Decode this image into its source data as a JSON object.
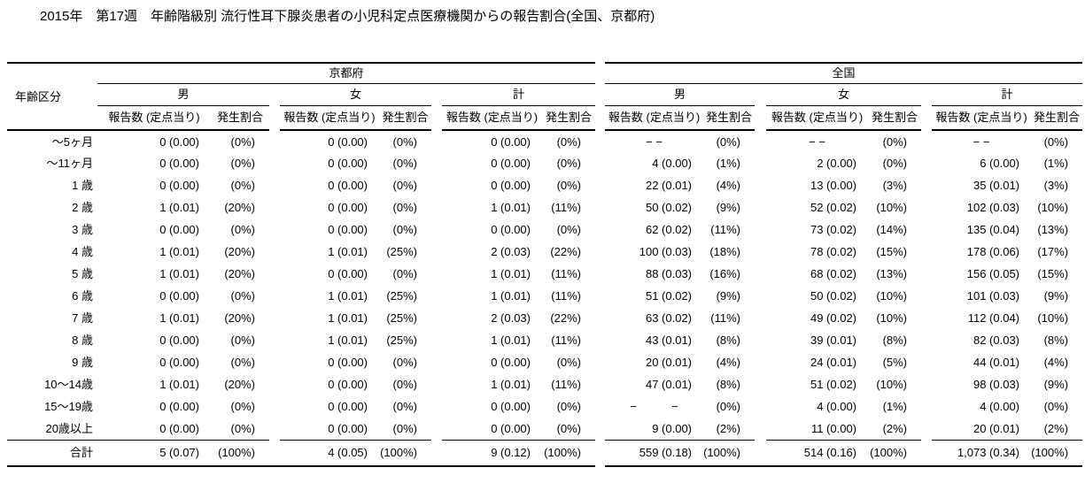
{
  "title": "2015年　第17週　年齢階級別 流行性耳下腺炎患者の小児科定点医療機関からの報告割合(全国、京都府)",
  "table": {
    "age_header": "年齢区分",
    "region_headers": [
      "京都府",
      "全国"
    ],
    "sex_headers": [
      "男",
      "女",
      "計"
    ],
    "col_headers": {
      "report": "報告数 (定点当り)",
      "rate": "発生割合"
    },
    "rows": [
      {
        "age": "〜5ヶ月",
        "cells": [
          "0 (0.00)",
          "(0%)",
          "0 (0.00)",
          "(0%)",
          "0 (0.00)",
          "(0%)",
          "− −",
          "(0%)",
          "− −",
          "(0%)",
          "− −",
          "(0%)"
        ]
      },
      {
        "age": "〜11ヶ月",
        "cells": [
          "0 (0.00)",
          "(0%)",
          "0 (0.00)",
          "(0%)",
          "0 (0.00)",
          "(0%)",
          "4 (0.00)",
          "(1%)",
          "2 (0.00)",
          "(0%)",
          "6 (0.00)",
          "(1%)"
        ]
      },
      {
        "age": "1 歳",
        "cells": [
          "0 (0.00)",
          "(0%)",
          "0 (0.00)",
          "(0%)",
          "0 (0.00)",
          "(0%)",
          "22 (0.01)",
          "(4%)",
          "13 (0.00)",
          "(3%)",
          "35 (0.01)",
          "(3%)"
        ]
      },
      {
        "age": "2 歳",
        "cells": [
          "1 (0.01)",
          "(20%)",
          "0 (0.00)",
          "(0%)",
          "1 (0.01)",
          "(11%)",
          "50 (0.02)",
          "(9%)",
          "52 (0.02)",
          "(10%)",
          "102 (0.03)",
          "(10%)"
        ]
      },
      {
        "age": "3 歳",
        "cells": [
          "0 (0.00)",
          "(0%)",
          "0 (0.00)",
          "(0%)",
          "0 (0.00)",
          "(0%)",
          "62 (0.02)",
          "(11%)",
          "73 (0.02)",
          "(14%)",
          "135 (0.04)",
          "(13%)"
        ]
      },
      {
        "age": "4 歳",
        "cells": [
          "1 (0.01)",
          "(20%)",
          "1 (0.01)",
          "(25%)",
          "2 (0.03)",
          "(22%)",
          "100 (0.03)",
          "(18%)",
          "78 (0.02)",
          "(15%)",
          "178 (0.06)",
          "(17%)"
        ]
      },
      {
        "age": "5 歳",
        "cells": [
          "1 (0.01)",
          "(20%)",
          "0 (0.00)",
          "(0%)",
          "1 (0.01)",
          "(11%)",
          "88 (0.03)",
          "(16%)",
          "68 (0.02)",
          "(13%)",
          "156 (0.05)",
          "(15%)"
        ]
      },
      {
        "age": "6 歳",
        "cells": [
          "0 (0.00)",
          "(0%)",
          "1 (0.01)",
          "(25%)",
          "1 (0.01)",
          "(11%)",
          "51 (0.02)",
          "(9%)",
          "50 (0.02)",
          "(10%)",
          "101 (0.03)",
          "(9%)"
        ]
      },
      {
        "age": "7 歳",
        "cells": [
          "1 (0.01)",
          "(20%)",
          "1 (0.01)",
          "(25%)",
          "2 (0.03)",
          "(22%)",
          "63 (0.02)",
          "(11%)",
          "49 (0.02)",
          "(10%)",
          "112 (0.04)",
          "(10%)"
        ]
      },
      {
        "age": "8 歳",
        "cells": [
          "0 (0.00)",
          "(0%)",
          "1 (0.01)",
          "(25%)",
          "1 (0.01)",
          "(11%)",
          "43 (0.01)",
          "(8%)",
          "39 (0.01)",
          "(8%)",
          "82 (0.03)",
          "(8%)"
        ]
      },
      {
        "age": "9 歳",
        "cells": [
          "0 (0.00)",
          "(0%)",
          "0 (0.00)",
          "(0%)",
          "0 (0.00)",
          "(0%)",
          "20 (0.01)",
          "(4%)",
          "24 (0.01)",
          "(5%)",
          "44 (0.01)",
          "(4%)"
        ]
      },
      {
        "age": "10〜14歳",
        "cells": [
          "1 (0.01)",
          "(20%)",
          "0 (0.00)",
          "(0%)",
          "1 (0.01)",
          "(11%)",
          "47 (0.01)",
          "(8%)",
          "51 (0.02)",
          "(10%)",
          "98 (0.03)",
          "(9%)"
        ]
      },
      {
        "age": "15〜19歳",
        "cells": [
          "0 (0.00)",
          "(0%)",
          "0 (0.00)",
          "(0%)",
          "0 (0.00)",
          "(0%)",
          "−　　　−",
          "(0%)",
          "4 (0.00)",
          "(1%)",
          "4 (0.00)",
          "(0%)"
        ]
      },
      {
        "age": "20歳以上",
        "cells": [
          "0 (0.00)",
          "(0%)",
          "0 (0.00)",
          "(0%)",
          "0 (0.00)",
          "(0%)",
          "9 (0.00)",
          "(2%)",
          "11 (0.00)",
          "(2%)",
          "20 (0.01)",
          "(2%)"
        ]
      }
    ],
    "total_row": {
      "age": "合計",
      "cells": [
        "5 (0.07)",
        "(100%)",
        "4 (0.05)",
        "(100%)",
        "9 (0.12)",
        "(100%)",
        "559 (0.18)",
        "(100%)",
        "514 (0.16)",
        "(100%)",
        "1,073 (0.34)",
        "(100%)"
      ]
    }
  }
}
